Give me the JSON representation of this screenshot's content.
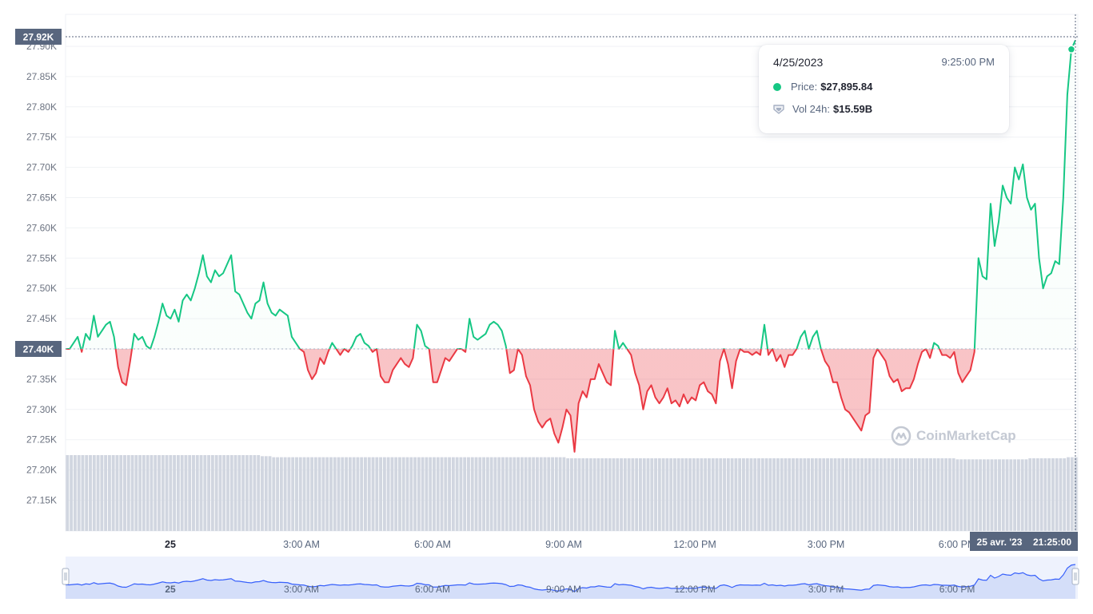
{
  "chart_data": {
    "type": "line",
    "title": "",
    "xlabel": "",
    "ylabel": "",
    "ylim": [
      27100,
      27950
    ],
    "baseline": 27400,
    "colors": {
      "up": "#16c784",
      "down": "#ea3943",
      "volume": "#d1d6e0"
    },
    "y_ticks": [
      "27.90K",
      "27.85K",
      "27.80K",
      "27.75K",
      "27.70K",
      "27.65K",
      "27.60K",
      "27.55K",
      "27.50K",
      "27.45K",
      "27.40K",
      "27.35K",
      "27.30K",
      "27.25K",
      "27.20K",
      "27.15K"
    ],
    "x_ticks": [
      {
        "label": "25",
        "bold": true,
        "hour": 2.75
      },
      {
        "label": "3:00 AM",
        "bold": false,
        "hour": 5.75
      },
      {
        "label": "6:00 AM",
        "bold": false,
        "hour": 8.75
      },
      {
        "label": "9:00 AM",
        "bold": false,
        "hour": 11.75
      },
      {
        "label": "12:00 PM",
        "bold": false,
        "hour": 14.75
      },
      {
        "label": "3:00 PM",
        "bold": false,
        "hour": 17.75
      },
      {
        "label": "6:00 PM",
        "bold": false,
        "hour": 20.75
      }
    ],
    "series": [
      {
        "type": "line",
        "hours_per_point": 0.25,
        "values": [
          27400,
          27400,
          27410,
          27420,
          27395,
          27425,
          27415,
          27455,
          27420,
          27430,
          27440,
          27445,
          27420,
          27370,
          27345,
          27340,
          27380,
          27425,
          27415,
          27420,
          27405,
          27400,
          27420,
          27445,
          27475,
          27455,
          27450,
          27465,
          27445,
          27480,
          27490,
          27480,
          27500,
          27525,
          27555,
          27520,
          27510,
          27530,
          27520,
          27525,
          27540,
          27555,
          27495,
          27490,
          27475,
          27460,
          27450,
          27475,
          27480,
          27510,
          27475,
          27460,
          27455,
          27465,
          27460,
          27455,
          27420,
          27410,
          27400,
          27395,
          27365,
          27350,
          27360,
          27385,
          27375,
          27395,
          27410,
          27400,
          27390,
          27400,
          27395,
          27405,
          27420,
          27425,
          27410,
          27405,
          27395,
          27400,
          27355,
          27345,
          27345,
          27365,
          27375,
          27385,
          27375,
          27370,
          27385,
          27440,
          27430,
          27405,
          27400,
          27345,
          27345,
          27365,
          27385,
          27380,
          27390,
          27400,
          27400,
          27395,
          27450,
          27420,
          27415,
          27420,
          27425,
          27440,
          27445,
          27440,
          27430,
          27405,
          27360,
          27365,
          27400,
          27390,
          27355,
          27340,
          27300,
          27280,
          27270,
          27280,
          27285,
          27260,
          27245,
          27270,
          27300,
          27290,
          27230,
          27310,
          27330,
          27320,
          27350,
          27350,
          27375,
          27360,
          27345,
          27340,
          27430,
          27400,
          27410,
          27400,
          27390,
          27360,
          27340,
          27300,
          27330,
          27340,
          27320,
          27310,
          27320,
          27335,
          27310,
          27315,
          27305,
          27325,
          27310,
          27320,
          27315,
          27340,
          27345,
          27330,
          27325,
          27310,
          27380,
          27400,
          27375,
          27335,
          27380,
          27400,
          27395,
          27395,
          27390,
          27395,
          27390,
          27440,
          27390,
          27400,
          27380,
          27390,
          27370,
          27390,
          27390,
          27400,
          27420,
          27430,
          27400,
          27420,
          27430,
          27400,
          27380,
          27370,
          27345,
          27345,
          27320,
          27300,
          27295,
          27285,
          27275,
          27265,
          27290,
          27295,
          27385,
          27400,
          27390,
          27380,
          27355,
          27345,
          27350,
          27330,
          27335,
          27335,
          27350,
          27375,
          27395,
          27400,
          27385,
          27410,
          27405,
          27390,
          27390,
          27385,
          27395,
          27360,
          27345,
          27355,
          27365,
          27395,
          27550,
          27520,
          27515,
          27640,
          27570,
          27610,
          27670,
          27650,
          27640,
          27700,
          27680,
          27705,
          27650,
          27630,
          27640,
          27550,
          27500,
          27520,
          27525,
          27545,
          27540,
          27650,
          27820,
          27895,
          27910
        ]
      }
    ],
    "volume_values": [
      0.72,
      0.72,
      0.72,
      0.72,
      0.72,
      0.72,
      0.72,
      0.72,
      0.72,
      0.72,
      0.72,
      0.72,
      0.72,
      0.72,
      0.72,
      0.72,
      0.72,
      0.72,
      0.72,
      0.72,
      0.72,
      0.72,
      0.72,
      0.72,
      0.72,
      0.72,
      0.72,
      0.72,
      0.72,
      0.72,
      0.72,
      0.72,
      0.72,
      0.72,
      0.72,
      0.72,
      0.72,
      0.72,
      0.72,
      0.72,
      0.72,
      0.72,
      0.72,
      0.72,
      0.72,
      0.72,
      0.72,
      0.72,
      0.72,
      0.72,
      0.72,
      0.71,
      0.71,
      0.71,
      0.7,
      0.7,
      0.7,
      0.7,
      0.7,
      0.7,
      0.7,
      0.7,
      0.7,
      0.7,
      0.7,
      0.7,
      0.7,
      0.7,
      0.7,
      0.7,
      0.7,
      0.7,
      0.7,
      0.7,
      0.7,
      0.7,
      0.7,
      0.7,
      0.7,
      0.7,
      0.7,
      0.7,
      0.7,
      0.7,
      0.7,
      0.7,
      0.7,
      0.7,
      0.7,
      0.7,
      0.7,
      0.7,
      0.7,
      0.7,
      0.7,
      0.7,
      0.7,
      0.7,
      0.7,
      0.7,
      0.7,
      0.7,
      0.7,
      0.7,
      0.7,
      0.7,
      0.7,
      0.7,
      0.7,
      0.7,
      0.7,
      0.7,
      0.7,
      0.7,
      0.7,
      0.7,
      0.7,
      0.7,
      0.7,
      0.7,
      0.7,
      0.7,
      0.7,
      0.7,
      0.7,
      0.7,
      0.7,
      0.7,
      0.7,
      0.7,
      0.7,
      0.69,
      0.69,
      0.69,
      0.69,
      0.69,
      0.69,
      0.69,
      0.69,
      0.69,
      0.69,
      0.69,
      0.69,
      0.69,
      0.69,
      0.69,
      0.69,
      0.69,
      0.69,
      0.69,
      0.69,
      0.69,
      0.69,
      0.69,
      0.69,
      0.69,
      0.69,
      0.69,
      0.69,
      0.69,
      0.69,
      0.69,
      0.69,
      0.69,
      0.69,
      0.69,
      0.69,
      0.69,
      0.69,
      0.69,
      0.69,
      0.69,
      0.69,
      0.69,
      0.69,
      0.69,
      0.69,
      0.69,
      0.69,
      0.69,
      0.69,
      0.69,
      0.69,
      0.69,
      0.69,
      0.69,
      0.69,
      0.69,
      0.69,
      0.69,
      0.69,
      0.69,
      0.69,
      0.69,
      0.69,
      0.69,
      0.69,
      0.69,
      0.69,
      0.69,
      0.69,
      0.69,
      0.69,
      0.69,
      0.69,
      0.69,
      0.69,
      0.69,
      0.69,
      0.69,
      0.69,
      0.69,
      0.69,
      0.69,
      0.69,
      0.69,
      0.69,
      0.69,
      0.69,
      0.69,
      0.69,
      0.69,
      0.69,
      0.69,
      0.69,
      0.69,
      0.69,
      0.69,
      0.69,
      0.69,
      0.69,
      0.69,
      0.69,
      0.68,
      0.68,
      0.68,
      0.68,
      0.68,
      0.68,
      0.68,
      0.68,
      0.68,
      0.68,
      0.68,
      0.68,
      0.68,
      0.68,
      0.68,
      0.68,
      0.68,
      0.68,
      0.68,
      0.69,
      0.69,
      0.69,
      0.69,
      0.69,
      0.69,
      0.69,
      0.69,
      0.69,
      0.69,
      0.7,
      0.7,
      0.7
    ],
    "current_price_label": "27.92K",
    "baseline_label": "27.40K",
    "hover_label": {
      "date": "25 avr. '23",
      "time": "21:25:00"
    }
  },
  "tooltip": {
    "date": "4/25/2023",
    "time": "9:25:00 PM",
    "price_label": "Price:",
    "price_value": "$27,895.84",
    "vol_label": "Vol 24h:",
    "vol_value": "$15.59B"
  },
  "watermark": "CoinMarketCap",
  "navigator": {
    "ticks": [
      {
        "label": "25",
        "bold": true
      },
      {
        "label": "3:00 AM",
        "bold": false
      },
      {
        "label": "6:00 AM",
        "bold": false
      },
      {
        "label": "9:00 AM",
        "bold": false
      },
      {
        "label": "12:00 PM",
        "bold": false
      },
      {
        "label": "3:00 PM",
        "bold": false
      },
      {
        "label": "6:00 PM",
        "bold": false
      }
    ]
  }
}
